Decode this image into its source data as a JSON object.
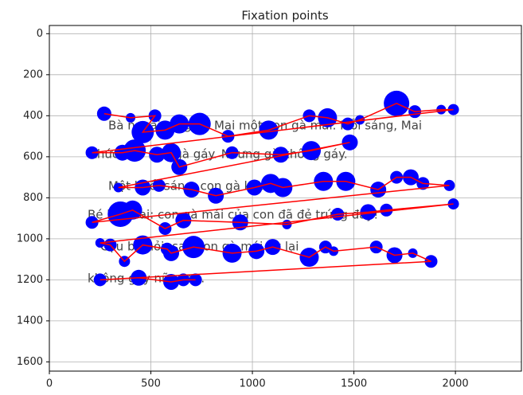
{
  "chart_data": {
    "type": "scatter",
    "title": "Fixation points",
    "background_text": [
      "Bà ngoại tặng bé Mai một con gà mái. Mỗi sáng, Mai",
      "thức dậy nhờ gà gáy. Nhưng gà không gáy.",
      "Một buổi sáng, con gà kêu.",
      "Bé hỏi Mai: con gà mái của con đã đẻ trứng đầy!",
      "Cậu bé hỏi: sao con gà mái ấy lại",
      "không gáy nữa sao."
    ],
    "x": [
      270,
      400,
      520,
      460,
      570,
      640,
      740,
      880,
      1080,
      1280,
      1370,
      1470,
      1530,
      1710,
      1800,
      1930,
      1990,
      210,
      360,
      420,
      530,
      600,
      640,
      900,
      1140,
      1290,
      1480,
      340,
      460,
      540,
      700,
      820,
      1010,
      1090,
      1150,
      1350,
      1460,
      1620,
      1710,
      1780,
      1840,
      1970,
      210,
      350,
      410,
      570,
      660,
      940,
      1170,
      1420,
      1570,
      1660,
      1990,
      250,
      300,
      370,
      460,
      580,
      600,
      710,
      900,
      1020,
      1100,
      1280,
      1360,
      1400,
      1610,
      1700,
      1790,
      1880,
      250,
      440,
      600,
      660,
      720
    ],
    "y": [
      390,
      410,
      400,
      480,
      470,
      440,
      440,
      500,
      470,
      400,
      410,
      440,
      420,
      340,
      380,
      370,
      370,
      580,
      580,
      570,
      590,
      580,
      650,
      580,
      590,
      570,
      530,
      750,
      750,
      740,
      760,
      790,
      750,
      730,
      750,
      720,
      720,
      760,
      700,
      700,
      730,
      740,
      920,
      880,
      860,
      950,
      910,
      920,
      930,
      880,
      870,
      860,
      830,
      1020,
      1030,
      1110,
      1030,
      1050,
      1070,
      1040,
      1070,
      1060,
      1040,
      1090,
      1040,
      1060,
      1040,
      1080,
      1070,
      1110,
      1200,
      1190,
      1210,
      1200,
      1200
    ],
    "sizes": [
      9,
      6,
      8,
      14,
      12,
      12,
      14,
      8,
      12,
      8,
      12,
      8,
      6,
      16,
      8,
      6,
      7,
      8,
      10,
      14,
      10,
      12,
      10,
      8,
      10,
      12,
      10,
      6,
      10,
      8,
      10,
      10,
      10,
      12,
      12,
      12,
      12,
      10,
      8,
      10,
      8,
      7,
      8,
      16,
      12,
      8,
      10,
      10,
      6,
      8,
      10,
      8,
      7,
      6,
      8,
      7,
      12,
      8,
      10,
      14,
      12,
      10,
      10,
      12,
      8,
      6,
      8,
      10,
      6,
      8,
      8,
      10,
      10,
      8,
      8
    ],
    "color": "#0000ff",
    "line_color": "#ff0000",
    "xlim": [
      0,
      2325
    ],
    "ylim": [
      1645,
      -40
    ],
    "xticks": [
      0,
      500,
      1000,
      1500,
      2000
    ],
    "yticks": [
      0,
      200,
      400,
      600,
      800,
      1000,
      1200,
      1400,
      1600
    ],
    "grid": true
  }
}
